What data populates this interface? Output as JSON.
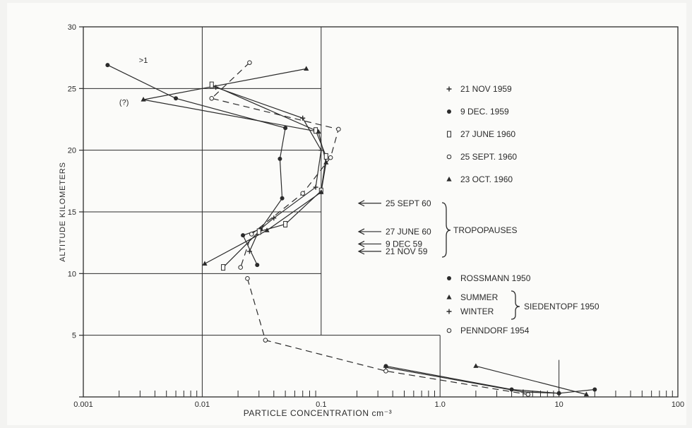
{
  "chart_data": {
    "type": "line",
    "xlabel": "PARTICLE  CONCENTRATION  cm⁻³",
    "ylabel": "ALTITUDE  KILOMETERS",
    "x_scale": "log",
    "xlim": [
      0.001,
      100
    ],
    "ylim": [
      0,
      30
    ],
    "x_ticks": [
      "0.001",
      "0.01",
      "0.1",
      "1.0",
      "10",
      "100"
    ],
    "y_ticks": [
      "0",
      "5",
      "10",
      "15",
      "20",
      "25",
      "30"
    ],
    "grid": true,
    "legend_position": "right",
    "series": [
      {
        "name": "21 NOV 1959",
        "marker": "plus",
        "style": "solid",
        "points": [
          [
            0.013,
            25.1
          ],
          [
            0.07,
            22.6
          ],
          [
            0.1,
            20.0
          ],
          [
            0.09,
            17.0
          ],
          [
            0.04,
            14.5
          ],
          [
            0.03,
            13.5
          ],
          [
            0.025,
            11.8
          ]
        ]
      },
      {
        "name": "9 DEC. 1959",
        "marker": "dot",
        "style": "solid",
        "points": [
          [
            0.0016,
            26.9
          ],
          [
            0.006,
            24.2
          ],
          [
            0.05,
            21.8
          ],
          [
            0.045,
            19.3
          ],
          [
            0.047,
            16.1
          ],
          [
            0.031,
            13.6
          ],
          [
            0.022,
            13.1
          ],
          [
            0.029,
            10.7
          ]
        ]
      },
      {
        "name": "27 JUNE 1960",
        "marker": "square",
        "style": "solid",
        "points": [
          [
            0.012,
            25.3
          ],
          [
            0.09,
            21.6
          ],
          [
            0.11,
            19.5
          ],
          [
            0.1,
            16.7
          ],
          [
            0.05,
            14.0
          ],
          [
            0.03,
            13.4
          ],
          [
            0.015,
            10.5
          ]
        ]
      },
      {
        "name": "25 SEPT. 1960",
        "marker": "circle",
        "style": "dashed",
        "points": [
          [
            0.025,
            27.1
          ],
          [
            0.012,
            24.2
          ],
          [
            0.14,
            21.7
          ],
          [
            0.12,
            19.4
          ],
          [
            0.07,
            16.5
          ],
          [
            0.026,
            13.2
          ],
          [
            0.021,
            10.5
          ]
        ]
      },
      {
        "name": "23 OCT. 1960",
        "marker": "triangle",
        "style": "solid",
        "points": [
          [
            0.075,
            26.6
          ],
          [
            0.0032,
            24.1
          ],
          [
            0.095,
            21.5
          ],
          [
            0.11,
            19.0
          ],
          [
            0.1,
            16.6
          ],
          [
            0.035,
            13.5
          ],
          [
            0.0105,
            10.8
          ]
        ]
      },
      {
        "name": "ROSSMANN 1950",
        "marker": "dot",
        "style": "solid",
        "points": [
          [
            0.35,
            2.5
          ],
          [
            4.0,
            0.6
          ],
          [
            10.0,
            0.3
          ],
          [
            20.0,
            0.6
          ]
        ]
      },
      {
        "name": "SUMMER",
        "marker": "triangle",
        "style": "solid",
        "points": [
          [
            2.0,
            2.5
          ],
          [
            17.0,
            0.2
          ]
        ]
      },
      {
        "name": "WINTER",
        "marker": "plus",
        "style": "solid",
        "points": [
          [
            0.35,
            2.4
          ],
          [
            5.0,
            0.4
          ],
          [
            10.0,
            0.3
          ]
        ]
      },
      {
        "name": "PENNDORF 1954",
        "marker": "circle",
        "style": "dashed",
        "points": [
          [
            0.024,
            9.6
          ],
          [
            0.034,
            4.6
          ],
          [
            0.35,
            2.1
          ],
          [
            5.5,
            0.2
          ]
        ]
      }
    ],
    "upper_marks": [
      {
        "text": ">1",
        "x": 0.0032,
        "y": 27.3
      },
      {
        "text": "(?)",
        "x": 0.0022,
        "y": 23.9
      }
    ],
    "tropopauses": {
      "label": "TROPOPAUSES",
      "entries": [
        {
          "label": "25 SEPT 60",
          "altitude": 15.7
        },
        {
          "label": "27 JUNE 60",
          "altitude": 13.4
        },
        {
          "label": "9  DEC 59",
          "altitude": 12.4
        },
        {
          "label": "21 NOV 59",
          "altitude": 11.8
        }
      ]
    },
    "siedentopf_label": "SIEDENTOPF 1950"
  }
}
